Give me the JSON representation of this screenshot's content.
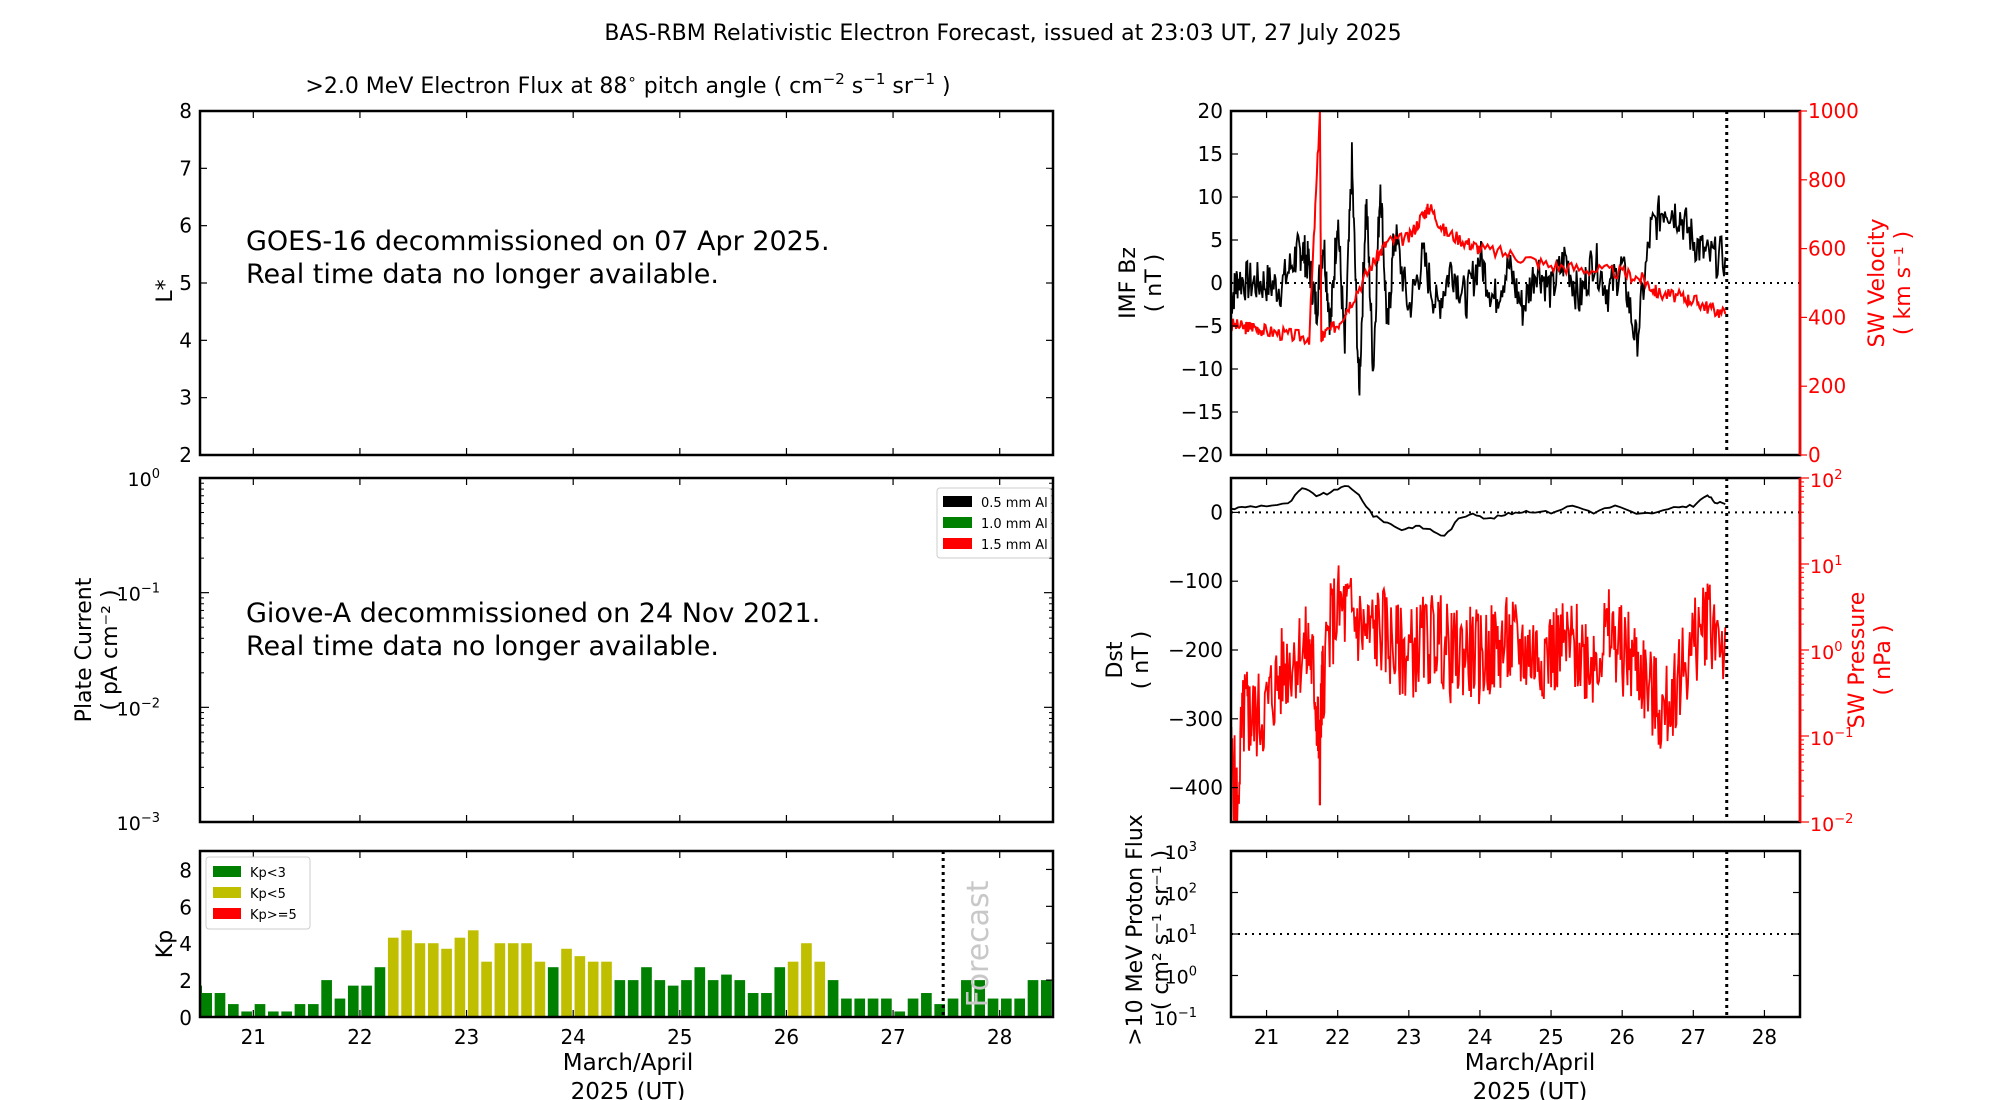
{
  "title": "BAS-RBM Relativistic Electron Forecast, issued at 23:03 UT, 27 July 2025",
  "colors": {
    "kp_low": "#008000",
    "kp_mid": "#bfbf00",
    "kp_high": "#ff0000",
    "red": "#ff0000",
    "black": "#000000",
    "forecast_text": "#c8c8c8"
  },
  "chart_data": [
    {
      "id": "electron-flux",
      "type": "heatmap",
      "title": ">2.0 MeV Electron Flux at 88° pitch angle ( cm⁻² s⁻¹ sr⁻¹ )",
      "title_parts": {
        "main": ">2.0 MeV Electron Flux at 88",
        "deg": "∘",
        "mid": " pitch angle ( cm",
        "e1": "−2",
        "s": " s",
        "e2": "−1",
        "sr": " sr",
        "e3": "−1",
        "end": " )"
      },
      "ylabel": "L*",
      "ylim": [
        2,
        8
      ],
      "yticks": [
        "2",
        "3",
        "4",
        "5",
        "6",
        "7",
        "8"
      ],
      "message": [
        "GOES-16 decommissioned on 07 Apr 2025.",
        "Real time data no longer available."
      ]
    },
    {
      "id": "plate-current",
      "type": "line",
      "ylabel": "Plate Current",
      "ylabel_units": "( pA cm⁻² )",
      "yscale": "log",
      "ylim": [
        0.001,
        1
      ],
      "yticks": [
        {
          "base": "10",
          "exp": "0"
        },
        {
          "base": "10",
          "exp": "−1"
        },
        {
          "base": "10",
          "exp": "−2"
        },
        {
          "base": "10",
          "exp": "−3"
        }
      ],
      "legend": [
        {
          "label": "0.5 mm Al",
          "color": "#000000"
        },
        {
          "label": "1.0 mm Al",
          "color": "#008000"
        },
        {
          "label": "1.5 mm Al",
          "color": "#ff0000"
        }
      ],
      "legend_position": "top-right",
      "message": [
        "Giove-A decommissioned on 24 Nov 2021.",
        "Real time data no longer available."
      ]
    },
    {
      "id": "kp",
      "type": "bar",
      "ylabel": "Kp",
      "ylim": [
        0,
        9
      ],
      "yticks": [
        "0",
        "2",
        "4",
        "6",
        "8"
      ],
      "xlim": [
        20.5,
        28.5
      ],
      "xticks": [
        "21",
        "22",
        "23",
        "24",
        "25",
        "26",
        "27",
        "28"
      ],
      "xlabel": "March/April",
      "xlabel2": "2025 (UT)",
      "forecast_label": "Forecast",
      "forecast_x": 27.47,
      "bar_width_days": 0.1,
      "start_x": 20.5625,
      "step_days": 0.125,
      "values": [
        1.3,
        1.3,
        0.7,
        0.3,
        0.7,
        0.3,
        0.3,
        0.7,
        0.7,
        2.0,
        1.0,
        1.7,
        1.7,
        2.7,
        4.3,
        4.7,
        4.0,
        4.0,
        3.7,
        4.3,
        4.7,
        3.0,
        4.0,
        4.0,
        4.0,
        3.0,
        2.7,
        3.7,
        3.3,
        3.0,
        3.0,
        2.0,
        2.0,
        2.7,
        2.0,
        1.7,
        2.0,
        2.7,
        2.0,
        2.3,
        2.0,
        1.3,
        1.3,
        2.7,
        3.0,
        4.0,
        3.0,
        2.0,
        1.0,
        1.0,
        1.0,
        1.0,
        0.3,
        1.0,
        1.3,
        0.7,
        1.0,
        2.0,
        2.0,
        1.0,
        1.0,
        1.0,
        2.0,
        2.0
      ],
      "legend": [
        {
          "label": "Kp<3",
          "color": "#008000"
        },
        {
          "label": "Kp<5",
          "color": "#bfbf00"
        },
        {
          "label": "Kp>=5",
          "color": "#ff0000"
        }
      ],
      "legend_position": "top-left"
    },
    {
      "id": "imf-sw-velocity",
      "type": "line",
      "ylabel": "IMF Bz",
      "ylabel_units": "( nT )",
      "ylim": [
        -20,
        20
      ],
      "yticks": [
        "20",
        "15",
        "10",
        "5",
        "0",
        "−5",
        "−10",
        "−15",
        "−20"
      ],
      "y2label": "SW Velocity",
      "y2label_units": "( km s⁻¹ )",
      "y2lim": [
        0,
        1000
      ],
      "y2ticks": [
        "1000",
        "800",
        "600",
        "400",
        "200",
        "0"
      ],
      "xlim": [
        20.5,
        28.5
      ],
      "forecast_x": 27.47,
      "series": [
        {
          "name": "IMF Bz",
          "color": "#000000",
          "x": [
            20.5,
            20.6,
            20.8,
            21.0,
            21.2,
            21.4,
            21.5,
            21.6,
            21.7,
            21.8,
            21.9,
            22.0,
            22.1,
            22.2,
            22.3,
            22.4,
            22.5,
            22.6,
            22.7,
            22.8,
            23.0,
            23.2,
            23.4,
            23.6,
            23.8,
            24.0,
            24.2,
            24.4,
            24.6,
            24.8,
            25.0,
            25.2,
            25.4,
            25.6,
            25.8,
            26.0,
            26.2,
            26.4,
            26.6,
            26.8,
            27.0,
            27.2,
            27.45
          ],
          "y": [
            -2,
            0.5,
            0,
            0,
            -0.5,
            3,
            4,
            2,
            -3,
            5,
            -5,
            8,
            -8,
            14,
            -13,
            10,
            -10,
            12,
            -6,
            6,
            -3,
            3,
            -3,
            2,
            -2,
            3,
            -2,
            2,
            -3,
            2,
            -1,
            3,
            -2,
            3,
            -1,
            2,
            -7,
            6,
            9,
            8,
            5,
            3,
            3
          ]
        },
        {
          "name": "SW Velocity",
          "color": "#ff0000",
          "x": [
            20.5,
            20.7,
            20.8,
            21.0,
            21.3,
            21.6,
            21.75,
            21.77,
            21.8,
            22.0,
            22.2,
            22.5,
            22.7,
            23.0,
            23.2,
            23.3,
            23.5,
            23.8,
            24.0,
            24.5,
            25.0,
            25.5,
            26.0,
            26.3,
            26.5,
            26.8,
            27.0,
            27.2,
            27.45
          ],
          "y": [
            380,
            370,
            375,
            360,
            350,
            340,
            1000,
            340,
            350,
            380,
            450,
            560,
            620,
            630,
            700,
            720,
            650,
            620,
            600,
            580,
            550,
            540,
            530,
            510,
            470,
            460,
            450,
            430,
            410
          ]
        }
      ],
      "reference_line": {
        "y2": 500
      }
    },
    {
      "id": "dst-sw-pressure",
      "type": "line",
      "ylabel": "Dst",
      "ylabel_units": "( nT )",
      "ylim": [
        -450,
        50
      ],
      "yticks": [
        "0",
        "−100",
        "−200",
        "−300",
        "−400"
      ],
      "y2label": "SW Pressure",
      "y2label_units": "( nPa )",
      "y2scale": "log",
      "y2lim": [
        0.01,
        100
      ],
      "y2ticks": [
        {
          "base": "10",
          "exp": "2"
        },
        {
          "base": "10",
          "exp": "1"
        },
        {
          "base": "10",
          "exp": "0"
        },
        {
          "base": "10",
          "exp": "−1"
        },
        {
          "base": "10",
          "exp": "−2"
        }
      ],
      "xlim": [
        20.5,
        28.5
      ],
      "forecast_x": 27.47,
      "series": [
        {
          "name": "Dst",
          "color": "#000000",
          "x": [
            20.5,
            20.7,
            21.0,
            21.3,
            21.5,
            21.7,
            21.9,
            22.1,
            22.3,
            22.5,
            22.7,
            22.9,
            23.1,
            23.3,
            23.5,
            23.7,
            23.9,
            24.1,
            24.3,
            24.5,
            24.7,
            25.0,
            25.3,
            25.6,
            25.9,
            26.2,
            26.5,
            26.8,
            27.0,
            27.2,
            27.3,
            27.45
          ],
          "y": [
            5,
            8,
            10,
            12,
            35,
            25,
            28,
            40,
            25,
            -5,
            -15,
            -25,
            -20,
            -25,
            -35,
            -10,
            0,
            -10,
            -5,
            0,
            2,
            0,
            10,
            0,
            10,
            -3,
            0,
            8,
            10,
            25,
            15,
            12
          ]
        },
        {
          "name": "SW Pressure",
          "color": "#ff0000",
          "x": [
            20.5,
            20.6,
            20.7,
            20.8,
            21.0,
            21.2,
            21.4,
            21.6,
            21.7,
            21.75,
            21.8,
            22.0,
            22.2,
            22.4,
            22.6,
            22.8,
            23.0,
            23.2,
            23.4,
            23.6,
            23.8,
            24.0,
            24.2,
            24.4,
            24.6,
            24.8,
            25.0,
            25.2,
            25.4,
            25.6,
            25.8,
            26.0,
            26.2,
            26.4,
            26.6,
            26.8,
            27.0,
            27.2,
            27.45
          ],
          "y": [
            0.05,
            0.01,
            0.2,
            0.15,
            0.2,
            0.5,
            0.9,
            1.0,
            0.2,
            0.02,
            0.5,
            3.0,
            2.5,
            1.5,
            1.8,
            1.0,
            0.9,
            1.2,
            1.5,
            0.8,
            1.0,
            0.8,
            1.0,
            1.2,
            1.0,
            0.9,
            1.0,
            1.1,
            1.0,
            0.8,
            1.5,
            1.0,
            0.7,
            0.3,
            0.15,
            0.5,
            1.0,
            2.5,
            1.0
          ]
        }
      ],
      "reference_line": {
        "y": 0
      }
    },
    {
      "id": "proton-flux",
      "type": "line",
      "ylabel": ">10 MeV Proton Flux",
      "ylabel_units": "( cm² s⁻¹ sr⁻¹ )",
      "yscale": "log",
      "ylim": [
        0.1,
        1000
      ],
      "yticks": [
        {
          "base": "10",
          "exp": "3"
        },
        {
          "base": "10",
          "exp": "2"
        },
        {
          "base": "10",
          "exp": "1"
        },
        {
          "base": "10",
          "exp": "0"
        },
        {
          "base": "10",
          "exp": "−1"
        }
      ],
      "xlim": [
        20.5,
        28.5
      ],
      "xticks": [
        "21",
        "22",
        "23",
        "24",
        "25",
        "26",
        "27",
        "28"
      ],
      "xlabel": "March/April",
      "xlabel2": "2025 (UT)",
      "forecast_x": 27.47,
      "reference_line": {
        "y": 10
      },
      "series": []
    }
  ]
}
